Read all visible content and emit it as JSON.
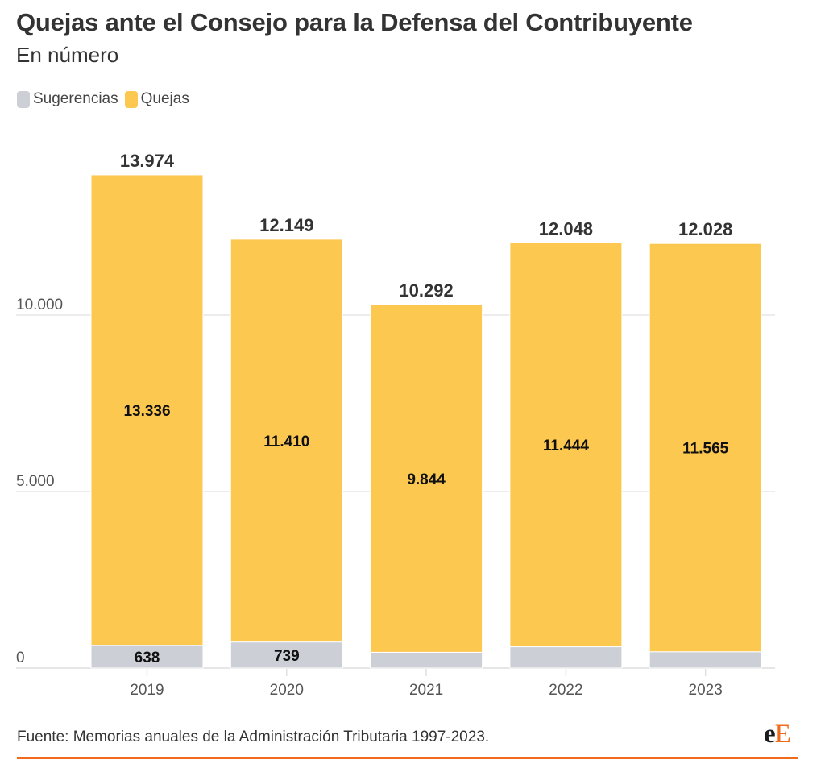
{
  "header": {
    "title": "Quejas ante el Consejo para la Defensa del Contribuyente",
    "subtitle": "En número"
  },
  "legend": [
    {
      "label": "Sugerencias",
      "color": "#ccd0d6"
    },
    {
      "label": "Quejas",
      "color": "#fdc84f"
    }
  ],
  "footer": {
    "source": "Fuente: Memorias anuales de la Administración Tributaria 1997-2023.",
    "logo_part1": "e",
    "logo_part2": "E"
  },
  "chart_data": {
    "type": "bar",
    "stacked": true,
    "title": "Quejas ante el Consejo para la Defensa del Contribuyente",
    "subtitle": "En número",
    "categories": [
      "2019",
      "2020",
      "2021",
      "2022",
      "2023"
    ],
    "series": [
      {
        "name": "Sugerencias",
        "color": "#ccd0d6",
        "values": [
          638,
          739,
          448,
          604,
          463
        ],
        "labels": [
          "638",
          "739",
          "",
          "",
          ""
        ]
      },
      {
        "name": "Quejas",
        "color": "#fdc84f",
        "values": [
          13336,
          11410,
          9844,
          11444,
          11565
        ],
        "labels": [
          "13.336",
          "11.410",
          "9.844",
          "11.444",
          "11.565"
        ]
      }
    ],
    "totals": [
      13974,
      12149,
      10292,
      12048,
      12028
    ],
    "total_labels": [
      "13.974",
      "12.149",
      "10.292",
      "12.048",
      "12.028"
    ],
    "yticks": [
      0,
      5000,
      10000
    ],
    "ytick_labels": [
      "0",
      "5.000",
      "10.000"
    ],
    "ylim": [
      0,
      14000
    ],
    "xlabel": "",
    "ylabel": "",
    "grid": true,
    "legend_position": "top-left"
  }
}
